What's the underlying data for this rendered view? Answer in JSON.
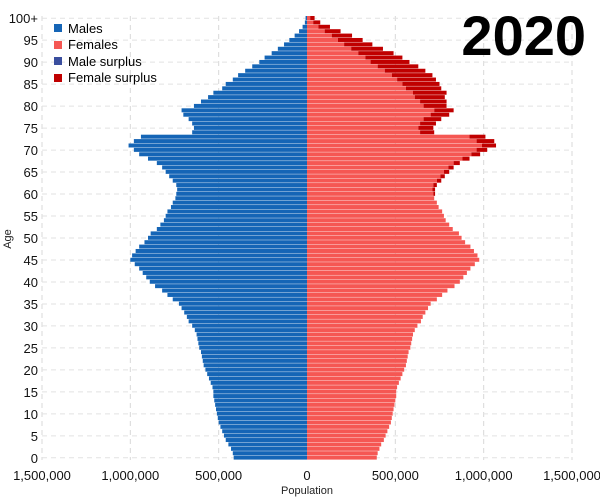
{
  "chart_data": {
    "type": "bar",
    "orientation": "horizontal",
    "title": "2020",
    "xlabel": "Population",
    "ylabel": "Age",
    "xlim": [
      -1500000,
      1500000
    ],
    "ylim": [
      0,
      101
    ],
    "grid": true,
    "legend_position": "top-left",
    "x_ticks": [
      -1500000,
      -1000000,
      -500000,
      0,
      500000,
      1000000,
      1500000
    ],
    "x_tick_labels": [
      "1,500,000",
      "1,000,000",
      "500,000",
      "0",
      "500,000",
      "1,000,000",
      "1,500,000"
    ],
    "y_ticks": [
      0,
      5,
      10,
      15,
      20,
      25,
      30,
      35,
      40,
      45,
      50,
      55,
      60,
      65,
      70,
      75,
      80,
      85,
      90,
      95,
      100
    ],
    "y_tick_labels": [
      "0",
      "5",
      "10",
      "15",
      "20",
      "25",
      "30",
      "35",
      "40",
      "45",
      "50",
      "55",
      "60",
      "65",
      "70",
      "75",
      "80",
      "85",
      "90",
      "95",
      "100+"
    ],
    "legend": [
      {
        "label": "Males",
        "color": "#1565b6"
      },
      {
        "label": "Females",
        "color": "#f55753"
      },
      {
        "label": "Male surplus",
        "color": "#3a4e9e"
      },
      {
        "label": "Female surplus",
        "color": "#c00000"
      }
    ],
    "series": [
      {
        "name": "Males",
        "color": "#1565b6",
        "values": [
          415000,
          420000,
          430000,
          445000,
          460000,
          470000,
          480000,
          490000,
          500000,
          505000,
          510000,
          515000,
          520000,
          525000,
          530000,
          530000,
          535000,
          545000,
          555000,
          565000,
          575000,
          585000,
          590000,
          595000,
          600000,
          610000,
          615000,
          620000,
          625000,
          635000,
          650000,
          670000,
          680000,
          695000,
          710000,
          725000,
          760000,
          790000,
          820000,
          860000,
          890000,
          910000,
          930000,
          950000,
          975000,
          1000000,
          990000,
          970000,
          950000,
          920000,
          900000,
          885000,
          850000,
          830000,
          810000,
          800000,
          790000,
          770000,
          760000,
          745000,
          740000,
          735000,
          740000,
          760000,
          780000,
          800000,
          820000,
          850000,
          900000,
          950000,
          980000,
          1010000,
          980000,
          940000,
          650000,
          640000,
          650000,
          670000,
          700000,
          710000,
          640000,
          600000,
          560000,
          530000,
          480000,
          460000,
          420000,
          390000,
          350000,
          310000,
          270000,
          240000,
          200000,
          165000,
          130000,
          100000,
          70000,
          45000,
          25000,
          12000,
          8000
        ]
      },
      {
        "name": "Females",
        "color": "#f55753",
        "values": [
          395000,
          400000,
          410000,
          420000,
          435000,
          445000,
          455000,
          465000,
          475000,
          480000,
          485000,
          490000,
          495000,
          500000,
          505000,
          505000,
          510000,
          520000,
          530000,
          540000,
          550000,
          560000,
          565000,
          570000,
          575000,
          585000,
          590000,
          595000,
          600000,
          610000,
          625000,
          645000,
          655000,
          670000,
          685000,
          700000,
          735000,
          765000,
          795000,
          835000,
          865000,
          885000,
          905000,
          925000,
          950000,
          975000,
          965000,
          945000,
          925000,
          895000,
          875000,
          860000,
          825000,
          805000,
          785000,
          775000,
          765000,
          745000,
          735000,
          720000,
          715000,
          710000,
          715000,
          735000,
          755000,
          775000,
          800000,
          830000,
          880000,
          930000,
          960000,
          990000,
          960000,
          920000,
          640000,
          630000,
          640000,
          660000,
          700000,
          720000,
          660000,
          640000,
          610000,
          600000,
          560000,
          540000,
          510000,
          480000,
          440000,
          400000,
          360000,
          330000,
          290000,
          250000,
          210000,
          175000,
          140000,
          100000,
          65000,
          35000,
          18000
        ]
      },
      {
        "name": "Female surplus",
        "color": "#c00000",
        "values": [
          0,
          0,
          0,
          0,
          0,
          0,
          0,
          0,
          0,
          0,
          0,
          0,
          0,
          0,
          0,
          0,
          0,
          0,
          0,
          0,
          0,
          0,
          0,
          0,
          0,
          0,
          0,
          0,
          0,
          0,
          0,
          0,
          0,
          0,
          0,
          0,
          0,
          0,
          0,
          0,
          0,
          0,
          0,
          0,
          0,
          0,
          0,
          0,
          0,
          0,
          0,
          0,
          0,
          0,
          0,
          0,
          0,
          0,
          0,
          0,
          10000,
          15000,
          20000,
          25000,
          25000,
          30000,
          30000,
          35000,
          40000,
          50000,
          60000,
          80000,
          100000,
          90000,
          80000,
          85000,
          90000,
          100000,
          105000,
          110000,
          130000,
          150000,
          170000,
          190000,
          200000,
          210000,
          220000,
          230000,
          230000,
          230000,
          220000,
          210000,
          200000,
          180000,
          160000,
          140000,
          115000,
          90000,
          65000,
          40000,
          25000
        ]
      }
    ]
  }
}
